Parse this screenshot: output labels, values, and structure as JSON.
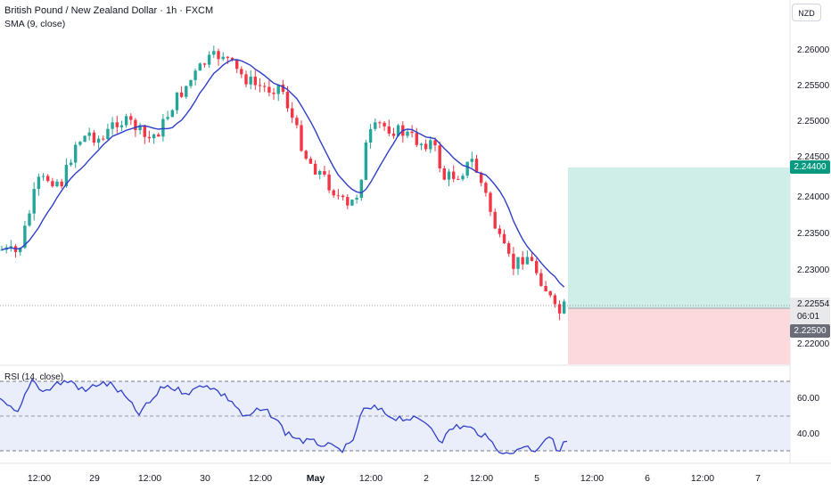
{
  "header": {
    "title": "British Pound / New Zealand Dollar · 1h · FXCM",
    "indicator": "SMA (9, close)",
    "currency_button": "NZD"
  },
  "rsi": {
    "title": "RSI (14, close)",
    "ticks": [
      "60.00",
      "40.00"
    ]
  },
  "price_axis": {
    "ticks": [
      "2.26000",
      "2.25500",
      "2.25000",
      "2.24500",
      "2.24000",
      "2.23500",
      "2.23000",
      "2.22000"
    ]
  },
  "position": {
    "take_profit": "2.24400",
    "current_price": "2.22554",
    "countdown": "06:01",
    "entry": "2.22500"
  },
  "time_axis": {
    "ticks": [
      "12:00",
      "29",
      "12:00",
      "30",
      "12:00",
      "May",
      "12:00",
      "2",
      "12:00",
      "5",
      "12:00",
      "6",
      "12:00",
      "7"
    ]
  },
  "colors": {
    "bull": "#26a69a",
    "bear": "#f23645",
    "sma": "#2e3ec9",
    "profit_zone": "#cfeee7",
    "loss_zone": "#fbd9dc",
    "rsi_band": "#eaeefb"
  }
}
